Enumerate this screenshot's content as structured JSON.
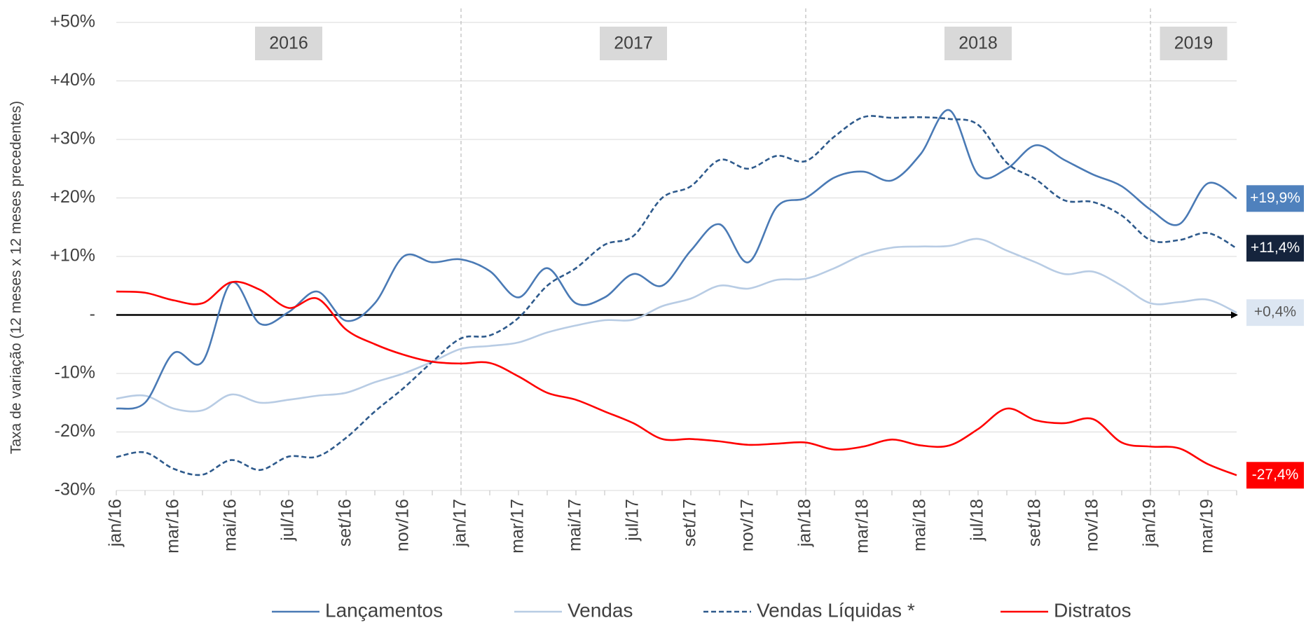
{
  "chart_data": {
    "type": "line",
    "y_axis_label": "Taxa de variação (12 meses x 12 meses precedentes)",
    "categories": [
      "jan/16",
      null,
      "mar/16",
      null,
      "mai/16",
      null,
      "jul/16",
      null,
      "set/16",
      null,
      "nov/16",
      null,
      "jan/17",
      null,
      "mar/17",
      null,
      "mai/17",
      null,
      "jul/17",
      null,
      "set/17",
      null,
      "nov/17",
      null,
      "jan/18",
      null,
      "mar/18",
      null,
      "mai/18",
      null,
      "jul/18",
      null,
      "set/18",
      null,
      "nov/18",
      null,
      "jan/19",
      null,
      "mar/19",
      null
    ],
    "ylim": [
      -30,
      50
    ],
    "yticks": [
      {
        "value": -30,
        "label": "-30%"
      },
      {
        "value": -20,
        "label": "-20%"
      },
      {
        "value": -10,
        "label": "-10%"
      },
      {
        "value": 0,
        "label": "-"
      },
      {
        "value": 10,
        "label": "+10%"
      },
      {
        "value": 20,
        "label": "+20%"
      },
      {
        "value": 30,
        "label": "+30%"
      },
      {
        "value": 40,
        "label": "+40%"
      },
      {
        "value": 50,
        "label": "+50%"
      }
    ],
    "grid": true,
    "legend": "bottom",
    "periods": [
      {
        "label": "2016",
        "start": 0
      },
      {
        "label": "2017",
        "start": 12
      },
      {
        "label": "2018",
        "start": 24
      },
      {
        "label": "2019",
        "start": 36
      }
    ],
    "series": [
      {
        "name": "Lançamentos",
        "color": "#4a7ab5",
        "dashed": false,
        "label_color": "#4f81bd",
        "label_text_color": "#ffffff",
        "values": [
          -16,
          -15,
          -6.5,
          -8,
          5.5,
          -1.5,
          0.5,
          4,
          -1,
          2,
          10,
          9,
          9.5,
          7.5,
          3,
          8,
          2,
          3,
          7,
          5,
          11,
          15.5,
          9,
          18.5,
          20,
          23.5,
          24.5,
          23,
          27.5,
          35,
          24,
          25,
          29,
          26.5,
          24,
          22,
          18,
          15.5,
          22.5,
          19.9
        ],
        "value_labels": [
          null,
          null,
          null,
          null,
          null,
          null,
          null,
          null,
          null,
          null,
          null,
          null,
          null,
          null,
          null,
          null,
          null,
          null,
          null,
          null,
          null,
          null,
          null,
          null,
          null,
          null,
          null,
          null,
          null,
          null,
          null,
          null,
          null,
          null,
          null,
          null,
          null,
          null,
          null,
          "+19,9%"
        ]
      },
      {
        "name": "Vendas",
        "color": "#b8cce4",
        "dashed": false,
        "label_color": "#dce6f2",
        "label_text_color": "#595959",
        "values": [
          -14.3,
          -13.8,
          -16,
          -16.3,
          -13.6,
          -15,
          -14.5,
          -13.8,
          -13.3,
          -11.5,
          -10,
          -8,
          -5.8,
          -5.3,
          -4.7,
          -3,
          -1.8,
          -0.9,
          -0.8,
          1.5,
          2.8,
          5,
          4.5,
          6,
          6.2,
          8,
          10.3,
          11.5,
          11.7,
          11.8,
          13,
          11,
          9,
          7,
          7.4,
          5,
          2,
          2.2,
          2.6,
          0.4
        ],
        "value_labels": [
          null,
          null,
          null,
          null,
          null,
          null,
          null,
          null,
          null,
          null,
          null,
          null,
          null,
          null,
          null,
          null,
          null,
          null,
          null,
          null,
          null,
          null,
          null,
          null,
          null,
          null,
          null,
          null,
          null,
          null,
          null,
          null,
          null,
          null,
          null,
          null,
          null,
          null,
          null,
          "+0,4%"
        ]
      },
      {
        "name": "Vendas Líquidas *",
        "color": "#2e5a8c",
        "dashed": true,
        "label_color": "#15243d",
        "label_text_color": "#ffffff",
        "values": [
          -24.3,
          -23.5,
          -26.3,
          -27.3,
          -24.8,
          -26.5,
          -24.2,
          -24.2,
          -21,
          -16.5,
          -12.5,
          -8,
          -4,
          -3.5,
          -0.5,
          5,
          8,
          12,
          13.5,
          20,
          22,
          26.5,
          25,
          27.2,
          26.3,
          30.5,
          33.8,
          33.7,
          33.8,
          33.5,
          32.5,
          26,
          23.2,
          19.6,
          19.3,
          17,
          12.8,
          12.8,
          14,
          11.4
        ],
        "value_labels": [
          null,
          null,
          null,
          null,
          null,
          null,
          null,
          null,
          null,
          null,
          null,
          null,
          null,
          null,
          null,
          null,
          null,
          null,
          null,
          null,
          null,
          null,
          null,
          null,
          null,
          null,
          null,
          null,
          null,
          null,
          null,
          null,
          null,
          null,
          null,
          null,
          null,
          null,
          null,
          "+11,4%"
        ]
      },
      {
        "name": "Distratos",
        "color": "#ff0000",
        "dashed": false,
        "label_color": "#ff0000",
        "label_text_color": "#ffffff",
        "values": [
          4,
          3.8,
          2.5,
          2,
          5.6,
          4.3,
          1.2,
          2.8,
          -2.5,
          -5,
          -6.8,
          -8,
          -8.3,
          -8.2,
          -10.5,
          -13.3,
          -14.5,
          -16.5,
          -18.5,
          -21.2,
          -21.2,
          -21.6,
          -22.2,
          -22,
          -21.8,
          -23,
          -22.5,
          -21.3,
          -22.3,
          -22.3,
          -19.5,
          -16,
          -18,
          -18.5,
          -17.8,
          -21.8,
          -22.5,
          -22.8,
          -25.5,
          -27.4
        ],
        "value_labels": [
          null,
          null,
          null,
          null,
          null,
          null,
          null,
          null,
          null,
          null,
          null,
          null,
          null,
          null,
          null,
          null,
          null,
          null,
          null,
          null,
          null,
          null,
          null,
          null,
          null,
          null,
          null,
          null,
          null,
          null,
          null,
          null,
          null,
          null,
          null,
          null,
          null,
          null,
          null,
          "-27,4%"
        ]
      }
    ]
  }
}
